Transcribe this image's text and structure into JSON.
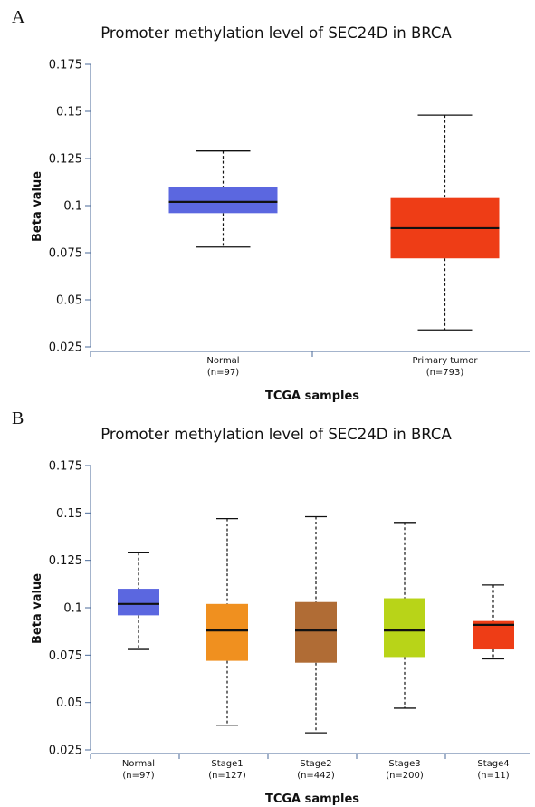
{
  "chart_data": [
    {
      "type": "box",
      "panel_label": "A",
      "title": "Promoter methylation level of SEC24D in BRCA",
      "xlabel": "TCGA samples",
      "ylabel": "Beta value",
      "ylim": [
        0.025,
        0.175
      ],
      "yticks": [
        "0.175",
        "0.15",
        "0.125",
        "0.1",
        "0.075",
        "0.05",
        "0.025"
      ],
      "boxes": [
        {
          "name": "Normal",
          "n_label": "(n=97)",
          "color": "#5b67e0",
          "min": 0.078,
          "q1": 0.096,
          "median": 0.102,
          "q3": 0.11,
          "max": 0.129
        },
        {
          "name": "Primary tumor",
          "n_label": "(n=793)",
          "color": "#ee3d16",
          "min": 0.034,
          "q1": 0.072,
          "median": 0.088,
          "q3": 0.104,
          "max": 0.148
        }
      ]
    },
    {
      "type": "box",
      "panel_label": "B",
      "title": "Promoter methylation level of SEC24D in BRCA",
      "xlabel": "TCGA samples",
      "ylabel": "Beta value",
      "ylim": [
        0.025,
        0.175
      ],
      "yticks": [
        "0.175",
        "0.15",
        "0.125",
        "0.1",
        "0.075",
        "0.05",
        "0.025"
      ],
      "boxes": [
        {
          "name": "Normal",
          "n_label": "(n=97)",
          "color": "#5b67e0",
          "min": 0.078,
          "q1": 0.096,
          "median": 0.102,
          "q3": 0.11,
          "max": 0.129
        },
        {
          "name": "Stage1",
          "n_label": "(n=127)",
          "color": "#f0901f",
          "min": 0.038,
          "q1": 0.072,
          "median": 0.088,
          "q3": 0.102,
          "max": 0.147
        },
        {
          "name": "Stage2",
          "n_label": "(n=442)",
          "color": "#b06c35",
          "min": 0.034,
          "q1": 0.071,
          "median": 0.088,
          "q3": 0.103,
          "max": 0.148
        },
        {
          "name": "Stage3",
          "n_label": "(n=200)",
          "color": "#b8d418",
          "min": 0.047,
          "q1": 0.074,
          "median": 0.088,
          "q3": 0.105,
          "max": 0.145
        },
        {
          "name": "Stage4",
          "n_label": "(n=11)",
          "color": "#ee3d16",
          "min": 0.073,
          "q1": 0.078,
          "median": 0.091,
          "q3": 0.093,
          "max": 0.112
        }
      ]
    }
  ]
}
